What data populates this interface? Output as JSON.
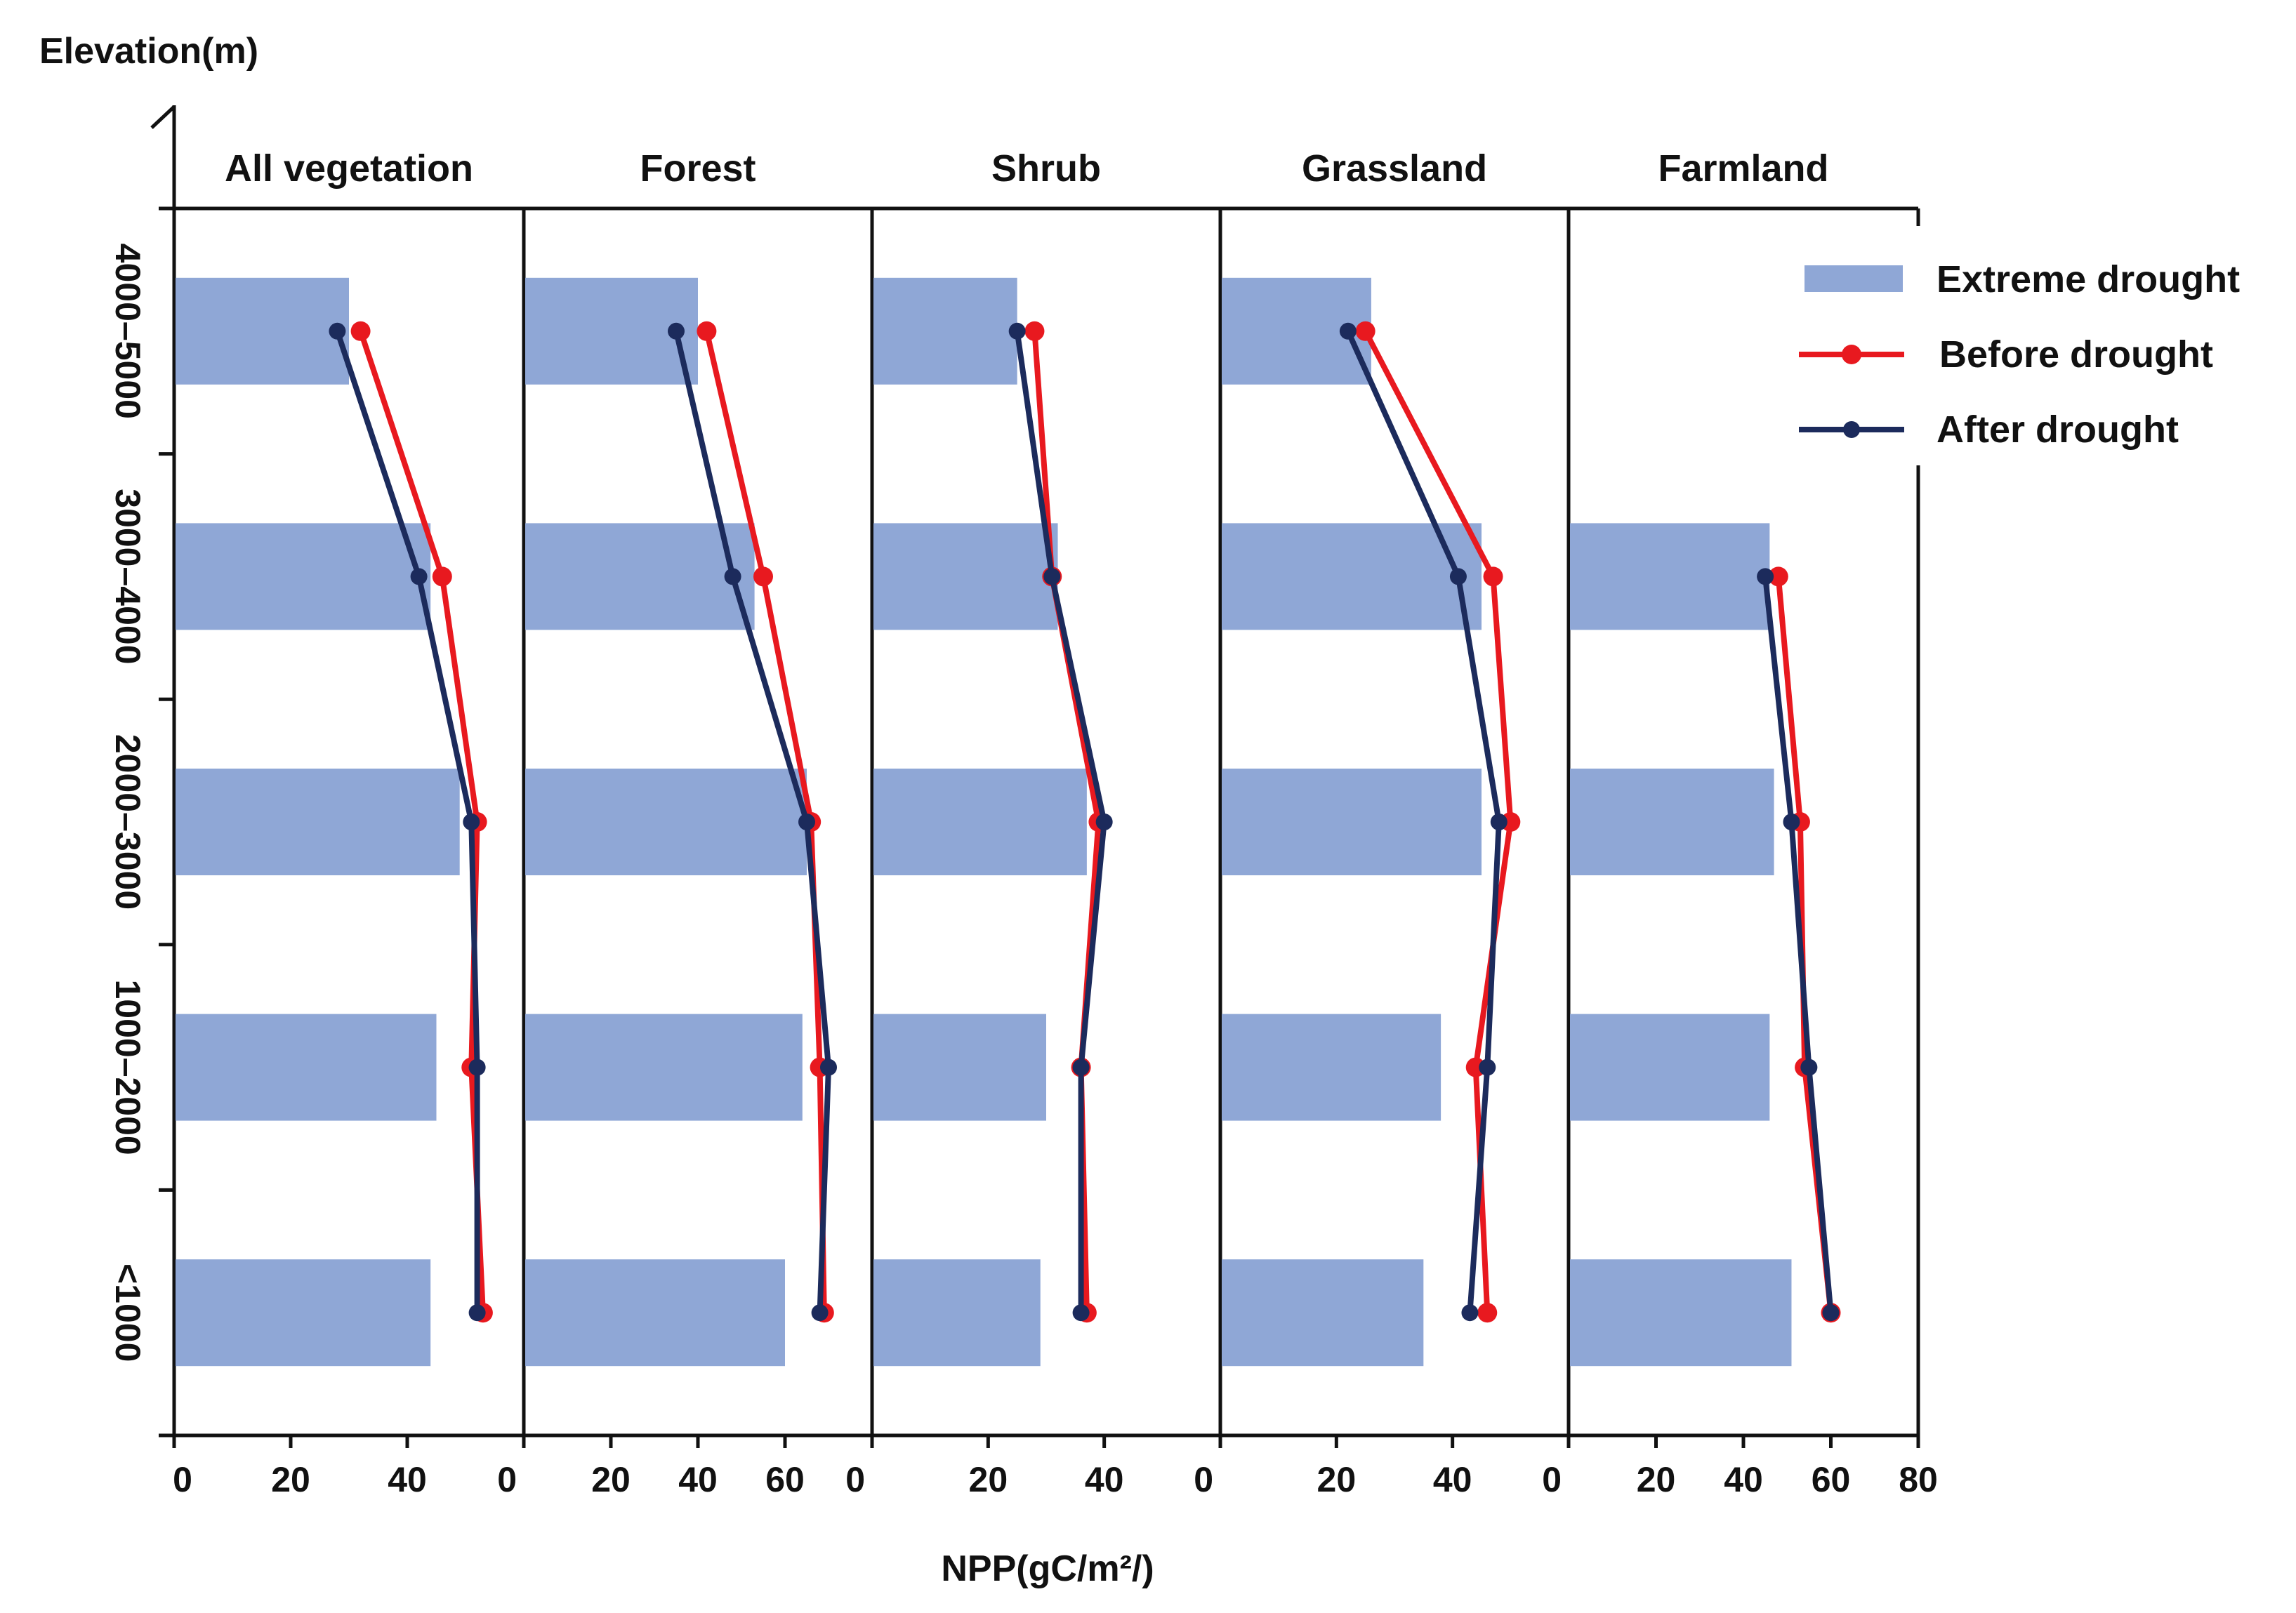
{
  "chart_data": {
    "type": "bar",
    "orientation": "horizontal",
    "y_axis_title": "Elevation(m)",
    "x_axis_title": "NPP(gC/m²/)",
    "categories": [
      "4000–5000",
      "3000–4000",
      "2000–3000",
      "1000–2000",
      "<1000"
    ],
    "legend": {
      "placement": "top-right",
      "items": [
        {
          "label": "Extreme drought",
          "kind": "bar"
        },
        {
          "label": "Before drought",
          "kind": "line"
        },
        {
          "label": "After drought",
          "kind": "line"
        }
      ]
    },
    "colors": {
      "bar": "#8FA7D6",
      "before": "#E8191F",
      "after": "#1C2B5C",
      "axis": "#111111"
    },
    "panels": [
      {
        "title": "All vegetation",
        "xlim": [
          0,
          60
        ],
        "xticks": [
          "0",
          "20",
          "40"
        ],
        "extreme": [
          30,
          44,
          49,
          45,
          44
        ],
        "before": [
          32,
          46,
          52,
          51,
          53
        ],
        "after": [
          28,
          42,
          51,
          52,
          52
        ]
      },
      {
        "title": "Forest",
        "xlim": [
          0,
          80
        ],
        "xticks": [
          "0",
          "20",
          "40",
          "60"
        ],
        "extreme": [
          40,
          53,
          65,
          64,
          60
        ],
        "before": [
          42,
          55,
          66,
          68,
          69
        ],
        "after": [
          35,
          48,
          65,
          70,
          68
        ]
      },
      {
        "title": "Shrub",
        "xlim": [
          0,
          60
        ],
        "xticks": [
          "0",
          "20",
          "40"
        ],
        "extreme": [
          25,
          32,
          37,
          30,
          29
        ],
        "before": [
          28,
          31,
          39,
          36,
          37
        ],
        "after": [
          25,
          31,
          40,
          36,
          36
        ]
      },
      {
        "title": "Grassland",
        "xlim": [
          0,
          60
        ],
        "xticks": [
          "0",
          "20",
          "40"
        ],
        "extreme": [
          26,
          45,
          45,
          38,
          35
        ],
        "before": [
          25,
          47,
          50,
          44,
          46
        ],
        "after": [
          22,
          41,
          48,
          46,
          43
        ]
      },
      {
        "title": "Farmland",
        "xlim": [
          0,
          80
        ],
        "xticks": [
          "0",
          "20",
          "40",
          "60",
          "80"
        ],
        "extreme": [
          null,
          46,
          47,
          46,
          51
        ],
        "before": [
          null,
          48,
          53,
          54,
          60
        ],
        "after": [
          null,
          45,
          51,
          55,
          60
        ]
      }
    ]
  }
}
